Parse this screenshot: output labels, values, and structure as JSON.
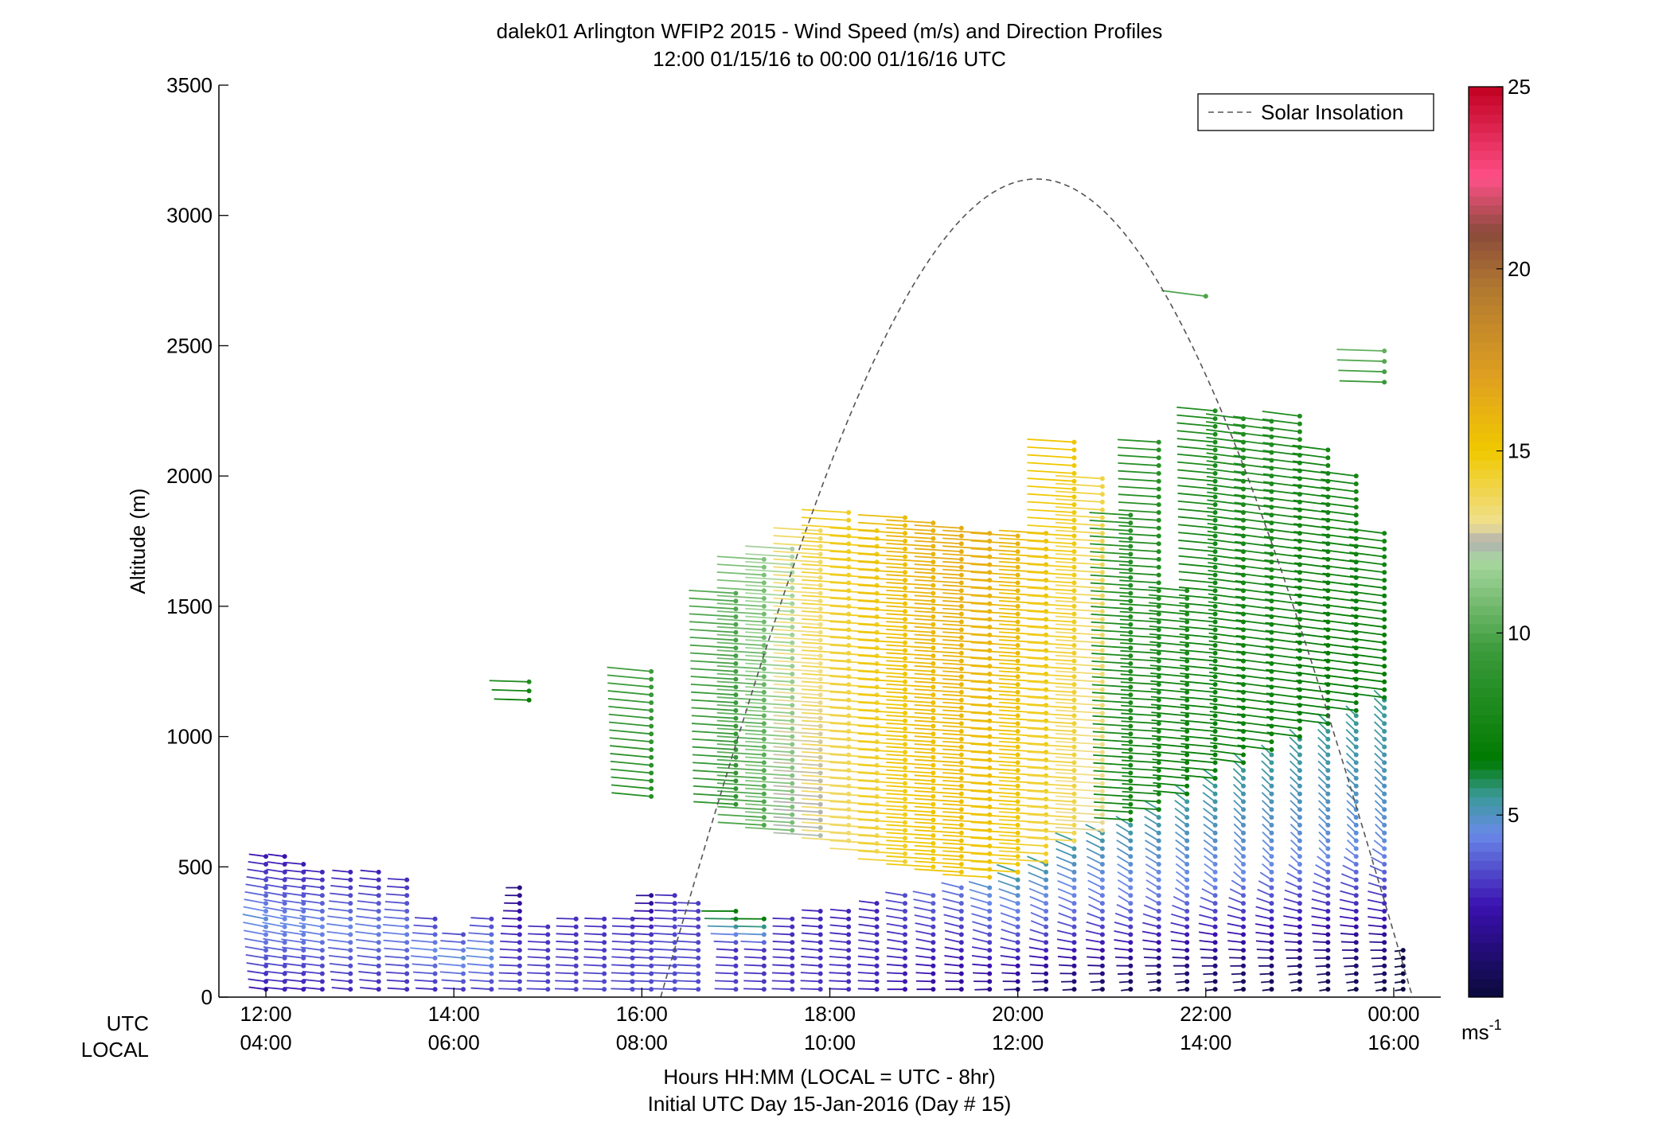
{
  "chart_data": {
    "type": "scatter",
    "title": "dalek01 Arlington WFIP2 2015 - Wind Speed (m/s) and Direction Profiles",
    "subtitle": "12:00 01/15/16 to 00:00 01/16/16  UTC",
    "ylabel": "Altitude (m)",
    "xlabel": "Hours HH:MM  (LOCAL = UTC - 8hr)",
    "xlabel2": "Initial UTC Day 15-Jan-2016 (Day # 15)",
    "x_row_label_utc": "UTC",
    "x_row_label_local": "LOCAL",
    "xlim_hours_utc": [
      11.5,
      24.5
    ],
    "ylim": [
      0,
      3500
    ],
    "yticks": [
      0,
      500,
      1000,
      1500,
      2000,
      2500,
      3000,
      3500
    ],
    "xticks_hours": [
      12,
      14,
      16,
      18,
      20,
      22,
      24
    ],
    "xtick_labels_utc": [
      "12:00",
      "14:00",
      "16:00",
      "18:00",
      "20:00",
      "22:00",
      "00:00"
    ],
    "xtick_labels_local": [
      "04:00",
      "06:00",
      "08:00",
      "10:00",
      "12:00",
      "14:00",
      "16:00"
    ],
    "legend": {
      "label": "Solar Insolation",
      "placement": "top-right"
    },
    "colorbar": {
      "range": [
        0,
        25
      ],
      "ticks": [
        5,
        10,
        15,
        20,
        25
      ],
      "tick_labels": [
        "5",
        "10",
        "15",
        "20",
        "25"
      ],
      "unit": "ms",
      "unit_exp": "-1",
      "stops": [
        {
          "v": 0,
          "c": "#0a0a3a"
        },
        {
          "v": 2.5,
          "c": "#3a10b0"
        },
        {
          "v": 4.5,
          "c": "#6a8ae8"
        },
        {
          "v": 5.5,
          "c": "#3a9a9a"
        },
        {
          "v": 6.5,
          "c": "#007a00"
        },
        {
          "v": 9.5,
          "c": "#3a9a3a"
        },
        {
          "v": 12,
          "c": "#a8d8a0"
        },
        {
          "v": 12.5,
          "c": "#b0b0b0"
        },
        {
          "v": 13,
          "c": "#f0e090"
        },
        {
          "v": 15,
          "c": "#f0c800"
        },
        {
          "v": 17,
          "c": "#e0a020"
        },
        {
          "v": 19.5,
          "c": "#b07830"
        },
        {
          "v": 21,
          "c": "#8a4a3a"
        },
        {
          "v": 22.5,
          "c": "#ff5088"
        },
        {
          "v": 25,
          "c": "#c00020"
        }
      ]
    },
    "solar_insolation": {
      "start_hour": 16.2,
      "end_hour": 24.2,
      "peak_hour": 20.0,
      "peak_altitude": 3140
    },
    "profiles": [
      {
        "t": 12.0,
        "z": [
          30,
          560
        ],
        "dz": 30,
        "speed": [
          2.6,
          4.8,
          2.4
        ],
        "dir": [
          250,
          240,
          250
        ]
      },
      {
        "t": 12.2,
        "z": [
          30,
          540
        ],
        "dz": 30,
        "speed": [
          2.8,
          4.6,
          2.5
        ],
        "dir": [
          255,
          240,
          250
        ]
      },
      {
        "t": 12.4,
        "z": [
          30,
          520
        ],
        "dz": 30,
        "speed": [
          2.7,
          4.6,
          2.6
        ],
        "dir": [
          255,
          245,
          255
        ]
      },
      {
        "t": 12.6,
        "z": [
          30,
          500
        ],
        "dz": 30,
        "speed": [
          2.8,
          4.5,
          2.7
        ],
        "dir": [
          255,
          245,
          255
        ]
      },
      {
        "t": 12.9,
        "z": [
          30,
          490
        ],
        "dz": 30,
        "speed": [
          2.9,
          4.5,
          2.7
        ],
        "dir": [
          255,
          250,
          255
        ]
      },
      {
        "t": 13.2,
        "z": [
          30,
          480
        ],
        "dz": 30,
        "speed": [
          2.9,
          4.4,
          2.8
        ],
        "dir": [
          255,
          250,
          255
        ]
      },
      {
        "t": 13.5,
        "z": [
          30,
          470
        ],
        "dz": 30,
        "speed": [
          3.0,
          4.4,
          2.8
        ],
        "dir": [
          260,
          255,
          260
        ]
      },
      {
        "t": 13.8,
        "z": [
          30,
          320
        ],
        "dz": 30,
        "speed": [
          3.0,
          4.6,
          3.0
        ],
        "dir": [
          260,
          255,
          260
        ]
      },
      {
        "t": 14.1,
        "z": [
          30,
          260
        ],
        "dz": 30,
        "speed": [
          3.2,
          4.8,
          3.2
        ],
        "dir": [
          260,
          255,
          260
        ]
      },
      {
        "t": 14.4,
        "z": [
          30,
          300
        ],
        "dz": 30,
        "speed": [
          3.3,
          4.8,
          3.3
        ],
        "dir": [
          260,
          255,
          260
        ]
      },
      {
        "t": 14.7,
        "z": [
          30,
          420
        ],
        "dz": 30,
        "speed": [
          3.4,
          3.0,
          1.5
        ],
        "dir": [
          265,
          260,
          270
        ]
      },
      {
        "t": 15.0,
        "z": [
          30,
          290
        ],
        "dz": 30,
        "speed": [
          3.4,
          3.2,
          3.0
        ],
        "dir": [
          265,
          260,
          265
        ]
      },
      {
        "t": 15.3,
        "z": [
          30,
          300
        ],
        "dz": 30,
        "speed": [
          3.4,
          3.2,
          3.0
        ],
        "dir": [
          265,
          260,
          265
        ]
      },
      {
        "t": 15.6,
        "z": [
          30,
          310
        ],
        "dz": 30,
        "speed": [
          3.5,
          3.2,
          3.0
        ],
        "dir": [
          265,
          260,
          265
        ]
      },
      {
        "t": 15.9,
        "z": [
          30,
          320
        ],
        "dz": 30,
        "speed": [
          3.5,
          3.3,
          3.1
        ],
        "dir": [
          265,
          260,
          265
        ]
      },
      {
        "t": 16.1,
        "z": [
          30,
          400
        ],
        "dz": 30,
        "speed": [
          3.5,
          3.3,
          1.8
        ],
        "dir": [
          265,
          260,
          270
        ]
      },
      {
        "t": 16.35,
        "z": [
          30,
          400
        ],
        "dz": 30,
        "speed": [
          3.5,
          3.5,
          3.0
        ],
        "dir": [
          265,
          260,
          265
        ]
      },
      {
        "t": 16.6,
        "z": [
          30,
          380
        ],
        "dz": 30,
        "speed": [
          3.5,
          3.4,
          3.2
        ],
        "dir": [
          265,
          260,
          265
        ]
      },
      {
        "t": 17.0,
        "z": [
          30,
          340
        ],
        "dz": 30,
        "speed": [
          3.4,
          3.0,
          7.0
        ],
        "dir": [
          265,
          260,
          270
        ]
      },
      {
        "t": 17.3,
        "z": [
          30,
          320
        ],
        "dz": 30,
        "speed": [
          3.2,
          3.0,
          7.0
        ],
        "dir": [
          265,
          260,
          270
        ]
      },
      {
        "t": 17.6,
        "z": [
          30,
          310
        ],
        "dz": 30,
        "speed": [
          3.2,
          3.0,
          3.0
        ],
        "dir": [
          265,
          260,
          265
        ]
      },
      {
        "t": 17.9,
        "z": [
          30,
          330
        ],
        "dz": 30,
        "speed": [
          3.1,
          3.0,
          2.8
        ],
        "dir": [
          265,
          255,
          260
        ]
      },
      {
        "t": 18.2,
        "z": [
          30,
          350
        ],
        "dz": 30,
        "speed": [
          3.0,
          3.0,
          2.8
        ],
        "dir": [
          265,
          255,
          255
        ]
      },
      {
        "t": 18.5,
        "z": [
          30,
          370
        ],
        "dz": 30,
        "speed": [
          2.8,
          3.0,
          2.8
        ],
        "dir": [
          265,
          250,
          250
        ]
      },
      {
        "t": 18.8,
        "z": [
          30,
          390
        ],
        "dz": 30,
        "speed": [
          2.5,
          3.0,
          3.5
        ],
        "dir": [
          270,
          245,
          245
        ]
      },
      {
        "t": 19.1,
        "z": [
          30,
          400
        ],
        "dz": 30,
        "speed": [
          2.2,
          3.0,
          4.0
        ],
        "dir": [
          270,
          240,
          240
        ]
      },
      {
        "t": 19.4,
        "z": [
          30,
          420
        ],
        "dz": 30,
        "speed": [
          2.0,
          3.0,
          4.2
        ],
        "dir": [
          270,
          235,
          235
        ]
      },
      {
        "t": 19.7,
        "z": [
          30,
          440
        ],
        "dz": 30,
        "speed": [
          1.8,
          3.5,
          5.0
        ],
        "dir": [
          275,
          230,
          230
        ]
      },
      {
        "t": 20.0,
        "z": [
          30,
          480
        ],
        "dz": 30,
        "speed": [
          1.5,
          3.8,
          5.5
        ],
        "dir": [
          275,
          225,
          225
        ]
      },
      {
        "t": 20.3,
        "z": [
          30,
          520
        ],
        "dz": 30,
        "speed": [
          1.2,
          3.8,
          5.5
        ],
        "dir": [
          280,
          220,
          220
        ]
      },
      {
        "t": 20.6,
        "z": [
          30,
          600
        ],
        "dz": 30,
        "speed": [
          1.0,
          4.0,
          5.5
        ],
        "dir": [
          280,
          220,
          220
        ]
      },
      {
        "t": 20.9,
        "z": [
          30,
          640
        ],
        "dz": 30,
        "speed": [
          0.8,
          4.0,
          5.5
        ],
        "dir": [
          285,
          215,
          215
        ]
      },
      {
        "t": 21.2,
        "z": [
          30,
          680
        ],
        "dz": 30,
        "speed": [
          0.6,
          4.2,
          5.5
        ],
        "dir": [
          290,
          210,
          210
        ]
      },
      {
        "t": 21.5,
        "z": [
          30,
          720
        ],
        "dz": 30,
        "speed": [
          0.5,
          4.2,
          5.5
        ],
        "dir": [
          290,
          210,
          210
        ]
      },
      {
        "t": 21.8,
        "z": [
          30,
          780
        ],
        "dz": 30,
        "speed": [
          0.5,
          4.4,
          5.5
        ],
        "dir": [
          290,
          205,
          205
        ]
      },
      {
        "t": 22.1,
        "z": [
          30,
          840
        ],
        "dz": 30,
        "speed": [
          0.5,
          4.4,
          5.6
        ],
        "dir": [
          290,
          205,
          205
        ]
      },
      {
        "t": 22.4,
        "z": [
          30,
          900
        ],
        "dz": 30,
        "speed": [
          0.5,
          4.5,
          5.6
        ],
        "dir": [
          290,
          200,
          200
        ]
      },
      {
        "t": 22.7,
        "z": [
          30,
          950
        ],
        "dz": 30,
        "speed": [
          0.5,
          4.5,
          5.6
        ],
        "dir": [
          290,
          200,
          200
        ]
      },
      {
        "t": 23.0,
        "z": [
          30,
          1000
        ],
        "dz": 30,
        "speed": [
          0.4,
          4.5,
          5.6
        ],
        "dir": [
          295,
          200,
          200
        ]
      },
      {
        "t": 23.3,
        "z": [
          30,
          1050
        ],
        "dz": 30,
        "speed": [
          0.4,
          4.6,
          5.6
        ],
        "dir": [
          295,
          200,
          200
        ]
      },
      {
        "t": 23.6,
        "z": [
          30,
          1100
        ],
        "dz": 30,
        "speed": [
          0.4,
          4.6,
          5.6
        ],
        "dir": [
          295,
          200,
          200
        ]
      },
      {
        "t": 23.9,
        "z": [
          30,
          1150
        ],
        "dz": 30,
        "speed": [
          0.4,
          4.7,
          5.6
        ],
        "dir": [
          295,
          200,
          200
        ]
      },
      {
        "t": 24.1,
        "z": [
          30,
          180
        ],
        "dz": 30,
        "speed": [
          0.3,
          0.3,
          0.3
        ],
        "dir": [
          295,
          290,
          290
        ]
      }
    ],
    "upper_profiles": [
      {
        "t": 14.8,
        "z": [
          1140,
          1210
        ],
        "dz": 35,
        "speed": 7.5,
        "dir": 265
      },
      {
        "t": 16.1,
        "z": [
          770,
          1250
        ],
        "dz": 30,
        "speed": 9.0,
        "dir": 255
      },
      {
        "t": 17.0,
        "z": [
          740,
          1550
        ],
        "dz": 30,
        "speed": 9.5,
        "dir": 260
      },
      {
        "t": 17.3,
        "z": [
          660,
          1700
        ],
        "dz": 30,
        "speed": 10.5,
        "dir": 260
      },
      {
        "t": 17.6,
        "z": [
          640,
          1720
        ],
        "dz": 30,
        "speed": 11.5,
        "dir": 260
      },
      {
        "t": 17.9,
        "z": [
          620,
          1800
        ],
        "dz": 30,
        "speed": 13.0,
        "dir": 260
      },
      {
        "t": 18.2,
        "z": [
          600,
          1880
        ],
        "dz": 30,
        "speed": 14.0,
        "dir": 260
      },
      {
        "t": 18.5,
        "z": [
          560,
          1800
        ],
        "dz": 30,
        "speed": 14.2,
        "dir": 260
      },
      {
        "t": 18.8,
        "z": [
          520,
          1840
        ],
        "dz": 30,
        "speed": 15.0,
        "dir": 260
      },
      {
        "t": 19.1,
        "z": [
          500,
          1840
        ],
        "dz": 30,
        "speed": 15.5,
        "dir": 260
      },
      {
        "t": 19.4,
        "z": [
          480,
          1800
        ],
        "dz": 30,
        "speed": 15.8,
        "dir": 260
      },
      {
        "t": 19.7,
        "z": [
          460,
          1790
        ],
        "dz": 30,
        "speed": 15.8,
        "dir": 260
      },
      {
        "t": 20.0,
        "z": [
          480,
          1780
        ],
        "dz": 30,
        "speed": 15.5,
        "dir": 260
      },
      {
        "t": 20.3,
        "z": [
          520,
          1800
        ],
        "dz": 30,
        "speed": 15.0,
        "dir": 260
      },
      {
        "t": 20.6,
        "z": [
          600,
          2140
        ],
        "dz": 30,
        "speed": 14.5,
        "dir": 260
      },
      {
        "t": 20.9,
        "z": [
          640,
          2000
        ],
        "dz": 30,
        "speed": 13.5,
        "dir": 260
      },
      {
        "t": 21.2,
        "z": [
          680,
          1850
        ],
        "dz": 30,
        "speed": 8.0,
        "dir": 260
      },
      {
        "t": 21.5,
        "z": [
          720,
          2140
        ],
        "dz": 30,
        "speed": 8.0,
        "dir": 260
      },
      {
        "t": 21.8,
        "z": [
          780,
          1560
        ],
        "dz": 30,
        "speed": 7.5,
        "dir": 255
      },
      {
        "t": 22.1,
        "z": [
          840,
          2260
        ],
        "dz": 30,
        "speed": 7.5,
        "dir": 255
      },
      {
        "t": 22.4,
        "z": [
          900,
          2230
        ],
        "dz": 30,
        "speed": 7.5,
        "dir": 250
      },
      {
        "t": 22.7,
        "z": [
          950,
          2220
        ],
        "dz": 30,
        "speed": 7.8,
        "dir": 250
      },
      {
        "t": 23.0,
        "z": [
          1000,
          2230
        ],
        "dz": 30,
        "speed": 7.5,
        "dir": 250
      },
      {
        "t": 23.3,
        "z": [
          1050,
          2100
        ],
        "dz": 30,
        "speed": 7.0,
        "dir": 250
      },
      {
        "t": 23.6,
        "z": [
          1100,
          2020
        ],
        "dz": 30,
        "speed": 7.0,
        "dir": 250
      },
      {
        "t": 23.9,
        "z": [
          1150,
          1780
        ],
        "dz": 30,
        "speed": 7.0,
        "dir": 250
      },
      {
        "t": 22.0,
        "z": [
          2690,
          2690
        ],
        "dz": 30,
        "speed": 10.5,
        "dir": 250
      },
      {
        "t": 23.9,
        "z": [
          2360,
          2510
        ],
        "dz": 40,
        "speed": 10.0,
        "dir": 265
      }
    ]
  }
}
